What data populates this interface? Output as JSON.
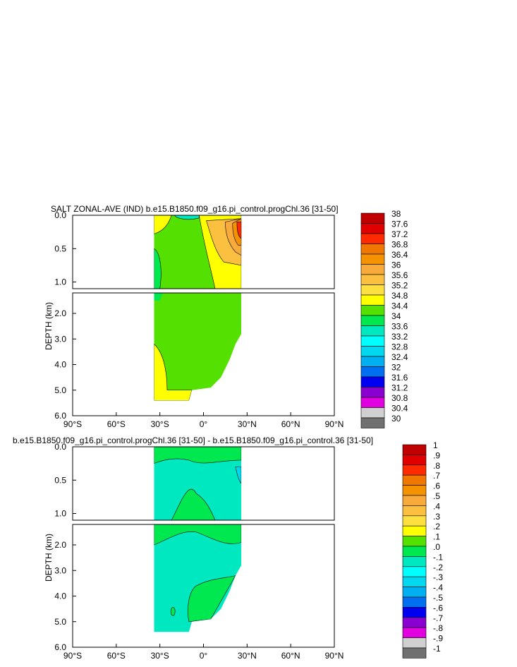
{
  "chart_data": [
    {
      "type": "contour",
      "title": "SALT ZONAL-AVE (IND) b.e15.B1850.f09_g16.pi_control.progChl.36 [31-50]",
      "ylabel": "DEPTH (km)",
      "xlim": [
        -90,
        90
      ],
      "ylim": [
        6.0,
        0.0
      ],
      "x_tick_labels": [
        "90°S",
        "60°S",
        "30°S",
        "0°",
        "30°N",
        "60°N",
        "90°N"
      ],
      "x_ticks": [
        -90,
        -60,
        -30,
        0,
        30,
        60,
        90
      ],
      "y_ticks_upper": [
        {
          "value": 0.0,
          "label": "0.0"
        },
        {
          "value": 0.5,
          "label": "0.5"
        },
        {
          "value": 1.0,
          "label": "1.0"
        }
      ],
      "y_ticks_lower": [
        {
          "value": 2.0,
          "label": "2.0"
        },
        {
          "value": 3.0,
          "label": "3.0"
        },
        {
          "value": 4.0,
          "label": "4.0"
        },
        {
          "value": 5.0,
          "label": "5.0"
        },
        {
          "value": 6.0,
          "label": "6.0"
        }
      ],
      "data_lat_range": [
        -34,
        26
      ],
      "colorbar": {
        "labels": [
          "38",
          "37.6",
          "37.2",
          "36.8",
          "36.4",
          "36",
          "35.6",
          "35.2",
          "34.8",
          "34.4",
          "34",
          "33.6",
          "33.2",
          "32.8",
          "32.4",
          "32",
          "31.6",
          "31.2",
          "30.8",
          "30.4",
          "30"
        ],
        "colors": [
          "#c00000",
          "#e00000",
          "#ff2a00",
          "#f07800",
          "#f59200",
          "#f8aa3a",
          "#fcc040",
          "#fde040",
          "#ffff00",
          "#54e000",
          "#00e850",
          "#00e8c0",
          "#00ffff",
          "#00d8f0",
          "#00b0f0",
          "#0070f0",
          "#0000f0",
          "#8a00d0",
          "#e000e0",
          "#d0d0d0",
          "#707070"
        ]
      }
    },
    {
      "type": "contour",
      "title": "b.e15.B1850.f09_g16.pi_control.progChl.36 [31-50] - b.e15.B1850.f09_g16.pi_control.36 [31-50]",
      "ylabel": "DEPTH (km)",
      "xlim": [
        -90,
        90
      ],
      "ylim": [
        6.0,
        0.0
      ],
      "x_tick_labels": [
        "90°S",
        "60°S",
        "30°S",
        "0°",
        "30°N",
        "60°N",
        "90°N"
      ],
      "x_ticks": [
        -90,
        -60,
        -30,
        0,
        30,
        60,
        90
      ],
      "y_ticks_upper": [
        {
          "value": 0.0,
          "label": "0.0"
        },
        {
          "value": 0.5,
          "label": "0.5"
        },
        {
          "value": 1.0,
          "label": "1.0"
        }
      ],
      "y_ticks_lower": [
        {
          "value": 2.0,
          "label": "2.0"
        },
        {
          "value": 3.0,
          "label": "3.0"
        },
        {
          "value": 4.0,
          "label": "4.0"
        },
        {
          "value": 5.0,
          "label": "5.0"
        },
        {
          "value": 6.0,
          "label": "6.0"
        }
      ],
      "data_lat_range": [
        -34,
        26
      ],
      "colorbar": {
        "labels": [
          "1",
          ".9",
          ".8",
          ".7",
          ".6",
          ".5",
          ".4",
          ".3",
          ".2",
          ".1",
          ".0",
          "-.1",
          "-.2",
          "-.3",
          "-.4",
          "-.5",
          "-.6",
          "-.7",
          "-.8",
          "-.9",
          "-1"
        ],
        "colors": [
          "#c00000",
          "#e00000",
          "#ff2a00",
          "#f07800",
          "#f59200",
          "#f8aa3a",
          "#fcc040",
          "#fde040",
          "#ffff00",
          "#54e000",
          "#00e850",
          "#00e8c0",
          "#00ffff",
          "#00d8f0",
          "#00b0f0",
          "#0070f0",
          "#0000f0",
          "#8a00d0",
          "#e000e0",
          "#d0d0d0",
          "#707070"
        ]
      }
    }
  ]
}
